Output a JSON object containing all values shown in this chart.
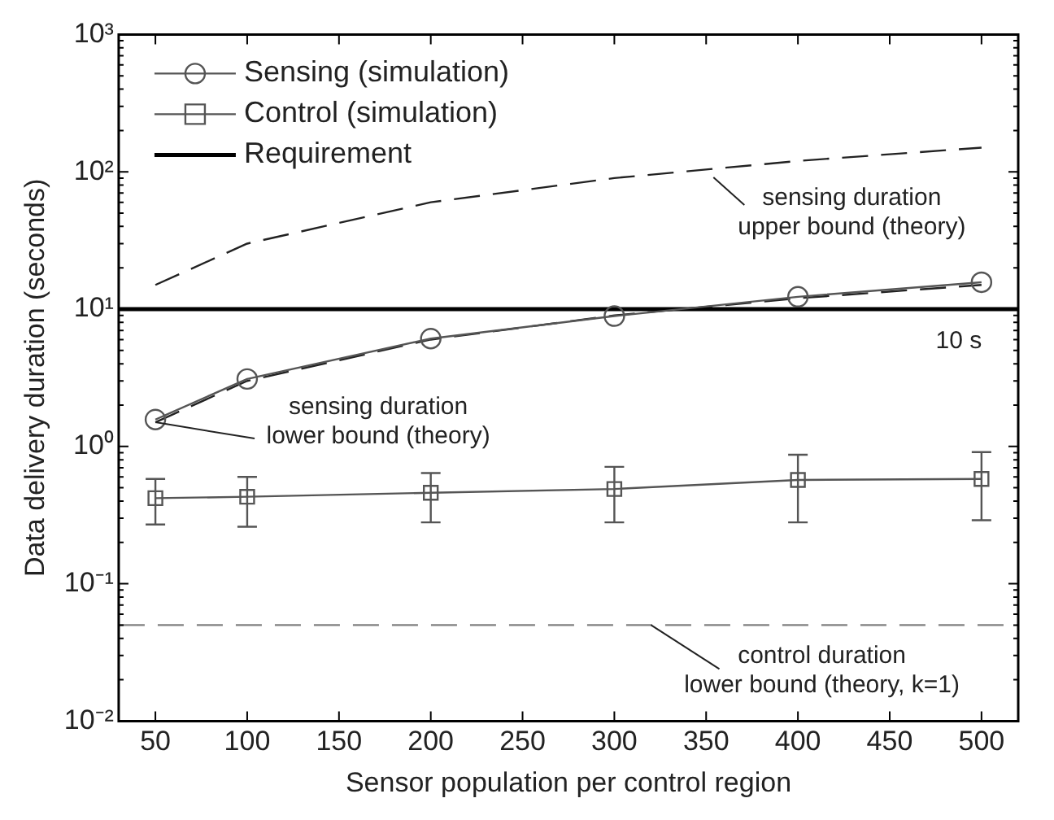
{
  "chart_data": {
    "type": "line",
    "xlabel": "Sensor population per control region",
    "ylabel": "Data delivery duration (seconds)",
    "log": "y",
    "grid": false,
    "legend": "top left",
    "xlim": [
      30,
      520
    ],
    "xticks": [
      50,
      100,
      150,
      200,
      250,
      300,
      350,
      400,
      450,
      500
    ],
    "ylim": [
      0.01,
      1000
    ],
    "yticks": [
      {
        "value": 0.01,
        "label": "10⁻²"
      },
      {
        "value": 0.1,
        "label": "10⁻¹"
      },
      {
        "value": 1,
        "label": "10⁰"
      },
      {
        "value": 10,
        "label": "10¹"
      },
      {
        "value": 100,
        "label": "10²"
      },
      {
        "value": 1000,
        "label": "10³"
      }
    ],
    "series": [
      {
        "name": "Sensing (simulation)",
        "color": "#555555",
        "marker": "circle",
        "line_style": "solid",
        "x": [
          50,
          100,
          200,
          300,
          400,
          500
        ],
        "values": [
          1.57,
          3.1,
          6.1,
          8.9,
          12.3,
          15.7
        ]
      },
      {
        "name": "Control (simulation)",
        "color": "#555555",
        "marker": "square",
        "line_style": "solid",
        "x": [
          50,
          100,
          200,
          300,
          400,
          500
        ],
        "values": [
          0.42,
          0.43,
          0.46,
          0.49,
          0.57,
          0.58
        ],
        "errors": [
          [
            0.27,
            0.58
          ],
          [
            0.26,
            0.6
          ],
          [
            0.28,
            0.64
          ],
          [
            0.28,
            0.71
          ],
          [
            0.28,
            0.87
          ],
          [
            0.29,
            0.91
          ]
        ]
      },
      {
        "name": "Requirement",
        "color": "#000000",
        "marker": "none",
        "line_style": "solid",
        "x": [
          30,
          520
        ],
        "values": [
          10,
          10
        ]
      },
      {
        "color": "#222222",
        "marker": "none",
        "line_style": "dashed",
        "x": [
          50,
          100,
          200,
          300,
          400,
          500
        ],
        "values": [
          1.5,
          3,
          6,
          9,
          12,
          15
        ]
      },
      {
        "color": "#222222",
        "marker": "none",
        "line_style": "dashed",
        "x": [
          50,
          100,
          200,
          300,
          400,
          500
        ],
        "values": [
          15,
          30,
          60,
          90,
          120,
          150
        ]
      },
      {
        "color": "#808080",
        "marker": "none",
        "line_style": "dashed",
        "x": [
          30,
          520
        ],
        "values": [
          0.05,
          0.05
        ]
      }
    ],
    "annotations": [
      {
        "text": "10 s",
        "x": 500,
        "y": 10
      },
      {
        "text": "sensing duration\nupper bound (theory)",
        "x": 354,
        "y": 91
      },
      {
        "text": "sensing duration\nlower bound (theory)",
        "x": 50,
        "y": 1.5
      },
      {
        "text": "control duration\nlower bound (theory, k=1)",
        "x": 320,
        "y": 0.05
      }
    ]
  }
}
